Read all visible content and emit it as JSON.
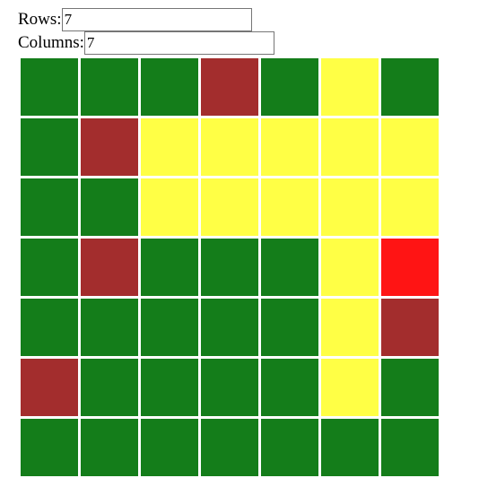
{
  "form": {
    "rows_label": "Rows:",
    "rows_value": "7",
    "columns_label": "Columns:",
    "columns_value": "7"
  },
  "palette": {
    "green": "#147d1a",
    "yellow": "#ffff45",
    "brown": "#a32d2d",
    "red": "#ff1414"
  },
  "grid": {
    "rows": 7,
    "columns": 7,
    "cells": [
      [
        "green",
        "green",
        "green",
        "brown",
        "green",
        "yellow",
        "green"
      ],
      [
        "green",
        "brown",
        "yellow",
        "yellow",
        "yellow",
        "yellow",
        "yellow"
      ],
      [
        "green",
        "green",
        "yellow",
        "yellow",
        "yellow",
        "yellow",
        "yellow"
      ],
      [
        "green",
        "brown",
        "green",
        "green",
        "green",
        "yellow",
        "red"
      ],
      [
        "green",
        "green",
        "green",
        "green",
        "green",
        "yellow",
        "brown"
      ],
      [
        "brown",
        "green",
        "green",
        "green",
        "green",
        "yellow",
        "green"
      ],
      [
        "green",
        "green",
        "green",
        "green",
        "green",
        "green",
        "green"
      ]
    ]
  }
}
